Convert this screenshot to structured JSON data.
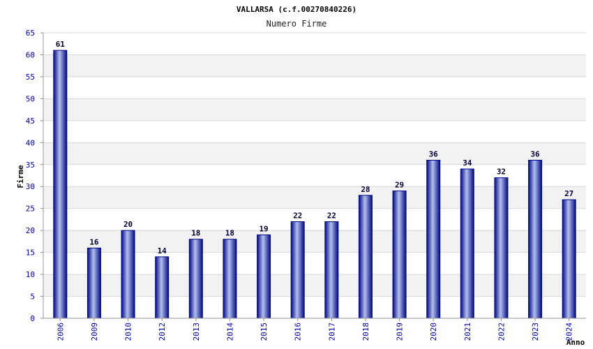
{
  "chart_data": {
    "type": "bar",
    "title": "VALLARSA (c.f.00270840226)",
    "subtitle": "Numero Firme",
    "xlabel": "Anno",
    "ylabel": "Firme",
    "ylim": [
      0,
      65
    ],
    "ytick_step": 5,
    "yticks": [
      "0",
      "5",
      "10",
      "15",
      "20",
      "25",
      "30",
      "35",
      "40",
      "45",
      "50",
      "55",
      "60",
      "65"
    ],
    "categories": [
      "2006",
      "2009",
      "2010",
      "2012",
      "2013",
      "2014",
      "2015",
      "2016",
      "2017",
      "2018",
      "2019",
      "2020",
      "2021",
      "2022",
      "2023",
      "2024"
    ],
    "values": [
      61,
      16,
      20,
      14,
      18,
      18,
      19,
      22,
      22,
      28,
      29,
      36,
      34,
      32,
      36,
      27
    ],
    "grid": true,
    "colors": {
      "bar_dark": "#000a80",
      "bar_light": "#b4bff0",
      "band": "#f2f2f2",
      "grid": "#d8d8d8",
      "tick_text": "#0000aa"
    }
  }
}
